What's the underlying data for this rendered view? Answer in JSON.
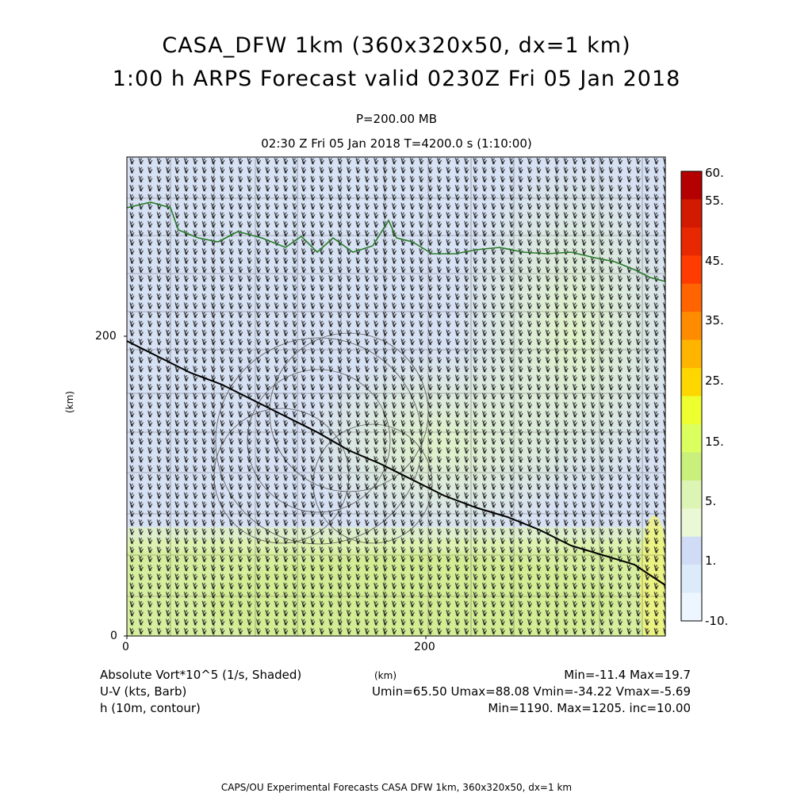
{
  "header": {
    "title_line1": "CASA_DFW 1km (360x320x50, dx=1 km)",
    "title_line2": "1:00 h ARPS Forecast valid 0230Z Fri 05 Jan 2018",
    "level": "P=200.00 MB",
    "time": "02:30 Z Fri 05 Jan 2018    T=4200.0 s (1:10:00)"
  },
  "axes": {
    "x_ticks": [
      "0",
      "200"
    ],
    "y_ticks": [
      "0",
      "200"
    ],
    "x_unit": "(km)",
    "y_unit": "(km)"
  },
  "colorbar": {
    "labels": [
      "60.",
      "55.",
      "45.",
      "35.",
      "25.",
      "15.",
      "5.",
      "1.",
      "-10."
    ],
    "colors": [
      "#b40000",
      "#d21a00",
      "#e82800",
      "#ff3c00",
      "#ff6400",
      "#ff8c00",
      "#ffb400",
      "#ffd700",
      "#eeff30",
      "#dcff60",
      "#c8f07a",
      "#dcf5b4",
      "#eaf8d6",
      "#d0dcf5",
      "#dcebfa",
      "#edf6ff"
    ]
  },
  "footer": {
    "field1": "Absolute Vort*10^5 (1/s, Shaded)",
    "field1_stats": "Min=-11.4 Max=19.7",
    "field2": "U-V (kts, Barb)",
    "field2_stats": "Umin=65.50 Umax=88.08 Vmin=-34.22 Vmax=-5.69",
    "field3": "h (10m, contour)",
    "field3_stats": "Min=1190. Max=1205. inc=10.00",
    "credit": "CAPS/OU Experimental Forecasts  CASA DFW 1km, 360x320x50, dx=1 km"
  }
}
